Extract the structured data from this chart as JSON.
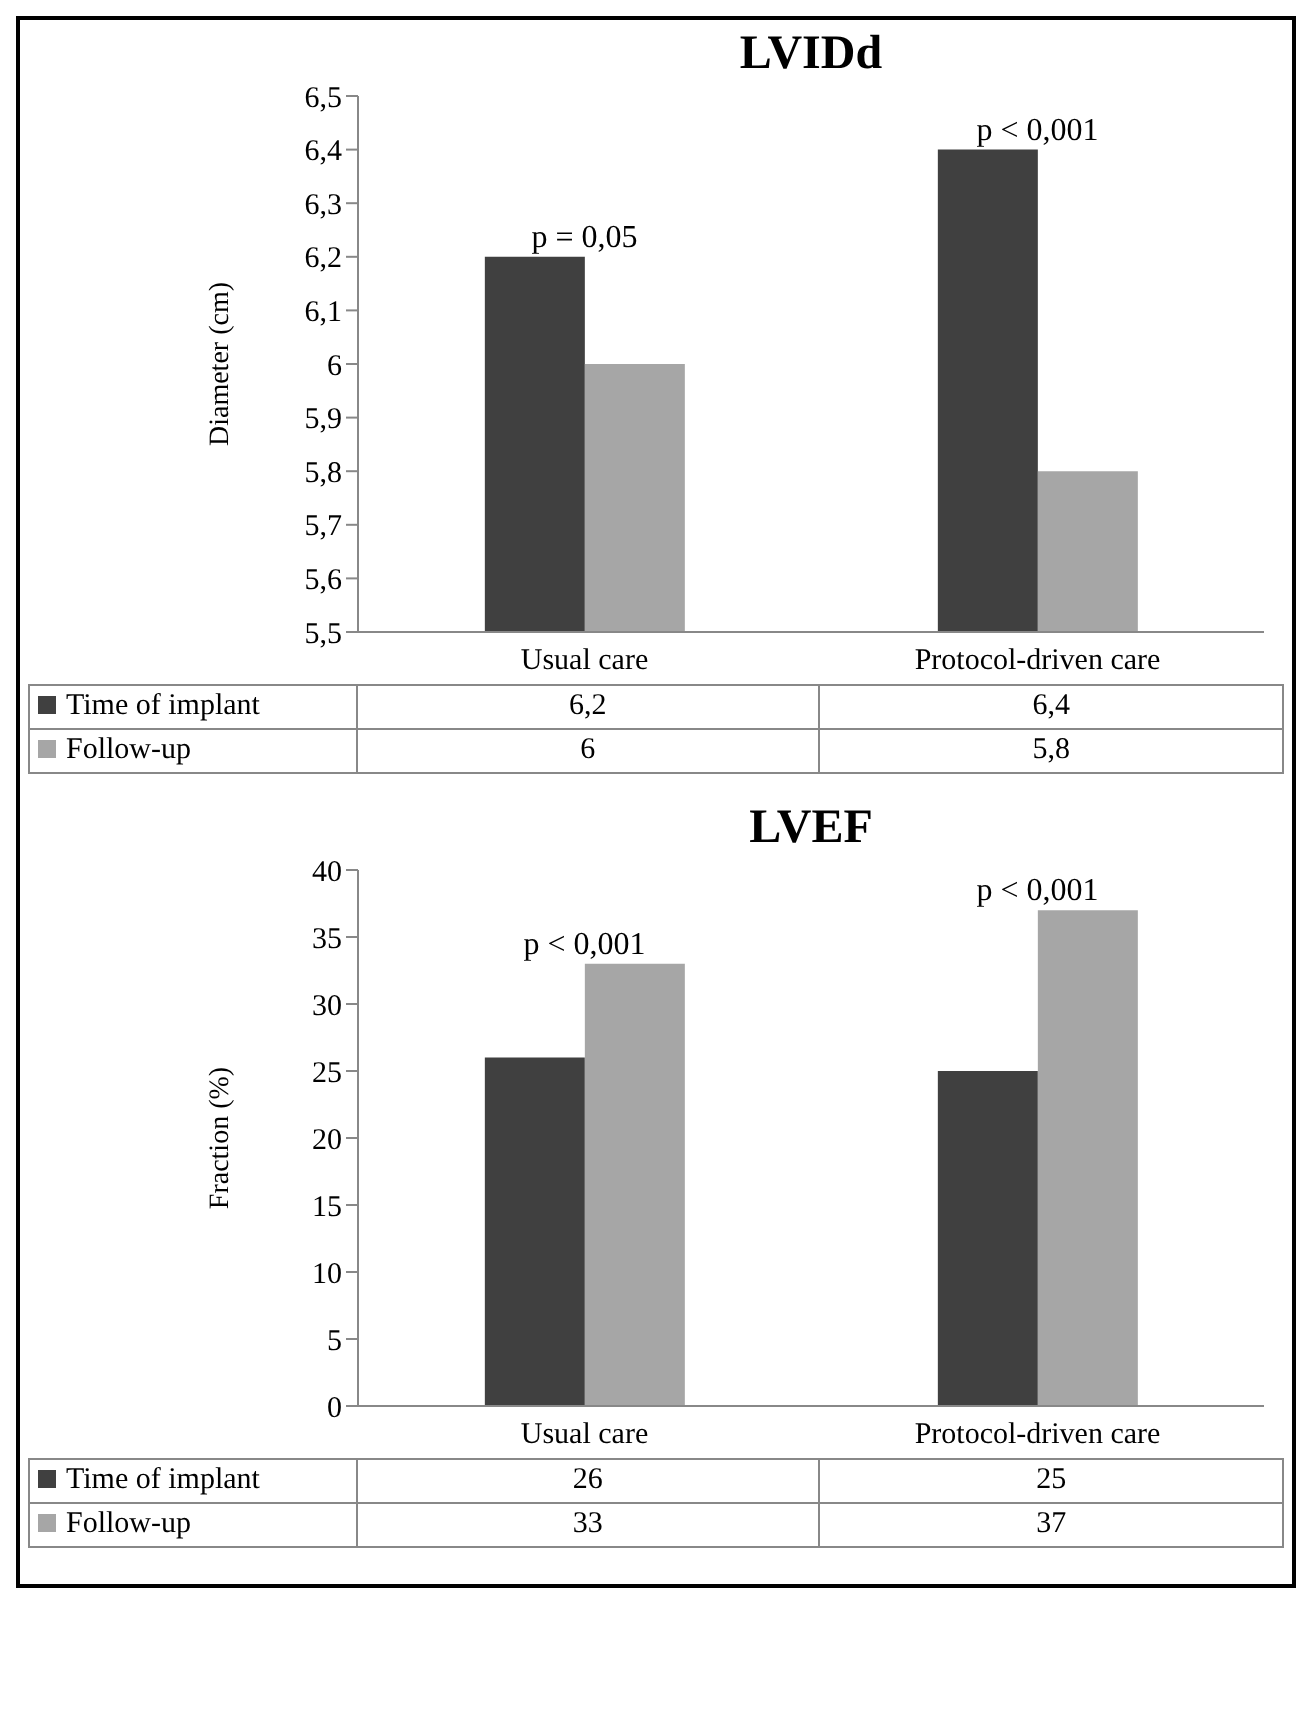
{
  "chart_data": [
    {
      "type": "bar",
      "title": "LVIDd",
      "ylabel": "Diameter  (cm)",
      "categories": [
        "Usual care",
        "Protocol-driven care"
      ],
      "series": [
        {
          "name": "Time of implant",
          "color": "#404040",
          "values": [
            6.2,
            6.4
          ],
          "value_labels": [
            "6,2",
            "6,4"
          ]
        },
        {
          "name": "Follow-up",
          "color": "#a6a6a6",
          "values": [
            6,
            5.8
          ],
          "value_labels": [
            "6",
            "5,8"
          ]
        }
      ],
      "ylim": [
        5.5,
        6.5
      ],
      "yticks": [
        {
          "value": 5.5,
          "label": "5,5"
        },
        {
          "value": 5.6,
          "label": "5,6"
        },
        {
          "value": 5.7,
          "label": "5,7"
        },
        {
          "value": 5.8,
          "label": "5,8"
        },
        {
          "value": 5.9,
          "label": "5,9"
        },
        6,
        {
          "value": 6.1,
          "label": "6,1"
        },
        {
          "value": 6.2,
          "label": "6,2"
        },
        {
          "value": 6.3,
          "label": "6,3"
        },
        {
          "value": 6.4,
          "label": "6,4"
        },
        {
          "value": 6.5,
          "label": "6,5"
        }
      ],
      "annotations": [
        {
          "text": "p = 0,05",
          "x": "Usual care",
          "y": 6.2
        },
        {
          "text": "p < 0,001",
          "x": "Protocol-driven care",
          "y": 6.4
        }
      ],
      "legend": "bottom"
    },
    {
      "type": "bar",
      "title": "LVEF",
      "ylabel": "Fraction (%)",
      "categories": [
        "Usual care",
        "Protocol-driven care"
      ],
      "series": [
        {
          "name": "Time of implant",
          "color": "#404040",
          "values": [
            26,
            25
          ]
        },
        {
          "name": "Follow-up",
          "color": "#a6a6a6",
          "values": [
            33,
            37
          ]
        }
      ],
      "ylim": [
        0,
        40
      ],
      "yticks": [
        0,
        5,
        10,
        15,
        20,
        25,
        30,
        35,
        40
      ],
      "data_labels": true,
      "annotations": [
        {
          "text": "p < 0,001",
          "x": "Usual care",
          "y": 33
        },
        {
          "text": "p < 0,001",
          "x": "Protocol-driven care",
          "y": 37
        }
      ],
      "legend": "bottom"
    }
  ]
}
